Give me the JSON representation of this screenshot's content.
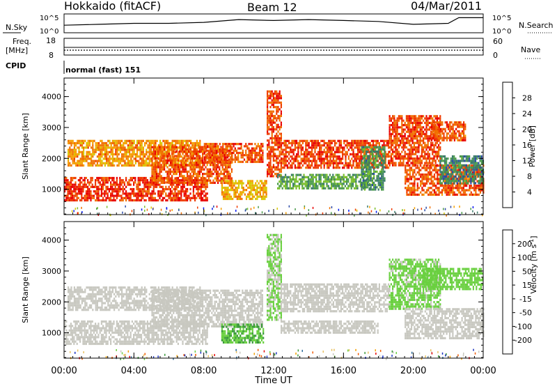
{
  "header": {
    "station": "Hokkaido (fitACF)",
    "beam": "Beam 12",
    "date": "04/Mar/2011"
  },
  "top_panels": {
    "nsky_label": "N.Sky",
    "nsky_tick_high": "10^5",
    "nsky_tick_low": "10^0",
    "nsearch_label": "N.Search",
    "freq_label_1": "Freq.",
    "freq_label_2": "[MHz]",
    "freq_tick_high": "18",
    "freq_tick_low": "8",
    "nave_label": "Nave",
    "nave_tick_high": "60",
    "nave_tick_low": "0",
    "cpid_label": "CPID",
    "cpid_value": "normal (fast) 151"
  },
  "chart_data": [
    {
      "type": "heatmap",
      "title": "",
      "xlabel": "Time UT",
      "ylabel": "Slant Range [km]",
      "x_ticks": [
        "00:00",
        "04:00",
        "08:00",
        "12:00",
        "16:00",
        "20:00",
        "00:00"
      ],
      "xlim_hours": [
        0,
        24
      ],
      "y_ticks": [
        1000,
        2000,
        3000,
        4000
      ],
      "ylim": [
        180,
        4600
      ],
      "colorbar": {
        "label": "Power [dB]",
        "ticks": [
          4,
          8,
          12,
          16,
          20,
          24,
          28
        ],
        "range": [
          0,
          32
        ],
        "colors": [
          "#0018f0",
          "#2a4aa8",
          "#3a7a6a",
          "#4a9a4a",
          "#7abf2a",
          "#d8c800",
          "#f5a000",
          "#f07000",
          "#ef3c00",
          "#e80000"
        ]
      },
      "regions": [
        {
          "t0": 0.0,
          "t1": 8.2,
          "r0": 650,
          "r1": 1400,
          "value": 28
        },
        {
          "t0": 0.2,
          "t1": 7.8,
          "r0": 1750,
          "r1": 2600,
          "value": 22
        },
        {
          "t0": 5.0,
          "t1": 9.6,
          "r0": 1200,
          "r1": 2400,
          "value": 26
        },
        {
          "t0": 8.0,
          "t1": 11.4,
          "r0": 1900,
          "r1": 2500,
          "value": 26
        },
        {
          "t0": 9.0,
          "t1": 11.6,
          "r0": 700,
          "r1": 1300,
          "value": 20
        },
        {
          "t0": 11.6,
          "t1": 12.4,
          "r0": 1400,
          "r1": 4200,
          "value": 27
        },
        {
          "t0": 12.4,
          "t1": 18.6,
          "r0": 1700,
          "r1": 2600,
          "value": 27
        },
        {
          "t0": 12.2,
          "t1": 17.5,
          "r0": 1000,
          "r1": 1500,
          "value": 12
        },
        {
          "t0": 17.0,
          "t1": 18.4,
          "r0": 1000,
          "r1": 2400,
          "value": 10
        },
        {
          "t0": 18.6,
          "t1": 21.5,
          "r0": 1800,
          "r1": 3400,
          "value": 27
        },
        {
          "t0": 19.5,
          "t1": 24.0,
          "r0": 800,
          "r1": 1800,
          "value": 26
        },
        {
          "t0": 21.0,
          "t1": 23.0,
          "r0": 2600,
          "r1": 3200,
          "value": 26
        },
        {
          "t0": 21.5,
          "t1": 24.0,
          "r0": 1200,
          "r1": 2100,
          "value": 9
        }
      ]
    },
    {
      "type": "heatmap",
      "title": "",
      "xlabel": "Time UT",
      "ylabel": "Slant Range [km]",
      "x_ticks": [
        "00:00",
        "04:00",
        "08:00",
        "12:00",
        "16:00",
        "20:00",
        "00:00"
      ],
      "xlim_hours": [
        0,
        24
      ],
      "y_ticks": [
        1000,
        2000,
        3000,
        4000
      ],
      "ylim": [
        180,
        4600
      ],
      "colorbar": {
        "label": "Velocity [m s^-1]",
        "tick_labels": [
          "200",
          "100",
          "50",
          "15",
          "-15",
          "-50",
          "-100",
          "-200"
        ],
        "range": [
          -250,
          250
        ],
        "colors": [
          "#e80000",
          "#f05a00",
          "#f5a000",
          "#e8c060",
          "#c8c8c0",
          "#6ad040",
          "#3a9a3a",
          "#2a6a9a",
          "#1a30c0"
        ]
      },
      "regions": [
        {
          "t0": 0.0,
          "t1": 8.2,
          "r0": 650,
          "r1": 1400,
          "value": 0
        },
        {
          "t0": 0.2,
          "t1": 7.8,
          "r0": 1750,
          "r1": 2500,
          "value": 0
        },
        {
          "t0": 5.0,
          "t1": 11.4,
          "r0": 1200,
          "r1": 2400,
          "value": 0
        },
        {
          "t0": 9.0,
          "t1": 11.4,
          "r0": 700,
          "r1": 1300,
          "value": 80
        },
        {
          "t0": 11.6,
          "t1": 12.4,
          "r0": 1400,
          "r1": 4200,
          "value": 30
        },
        {
          "t0": 12.4,
          "t1": 18.6,
          "r0": 1700,
          "r1": 2600,
          "value": 0
        },
        {
          "t0": 12.4,
          "t1": 18.0,
          "r0": 1000,
          "r1": 1400,
          "value": 0
        },
        {
          "t0": 18.6,
          "t1": 21.5,
          "r0": 1800,
          "r1": 3400,
          "value": 40
        },
        {
          "t0": 19.5,
          "t1": 24.0,
          "r0": 800,
          "r1": 1800,
          "value": 0
        },
        {
          "t0": 20.5,
          "t1": 24.0,
          "r0": 2400,
          "r1": 3100,
          "value": 60
        }
      ]
    }
  ],
  "nsky_series": [
    {
      "t": 0,
      "v": 0.4
    },
    {
      "t": 2,
      "v": 0.45
    },
    {
      "t": 4,
      "v": 0.5
    },
    {
      "t": 6,
      "v": 0.5
    },
    {
      "t": 8,
      "v": 0.55
    },
    {
      "t": 10,
      "v": 0.7
    },
    {
      "t": 12,
      "v": 0.65
    },
    {
      "t": 14,
      "v": 0.7
    },
    {
      "t": 16,
      "v": 0.65
    },
    {
      "t": 18,
      "v": 0.6
    },
    {
      "t": 20,
      "v": 0.45
    },
    {
      "t": 22,
      "v": 0.5
    },
    {
      "t": 22.6,
      "v": 0.8
    },
    {
      "t": 24,
      "v": 0.8
    }
  ],
  "freq_series_mhz": [
    {
      "t": 0,
      "v": 11.6
    },
    {
      "t": 24,
      "v": 11.6
    }
  ],
  "nave_series": [
    {
      "t": 0,
      "v": 25
    },
    {
      "t": 24,
      "v": 25
    }
  ]
}
